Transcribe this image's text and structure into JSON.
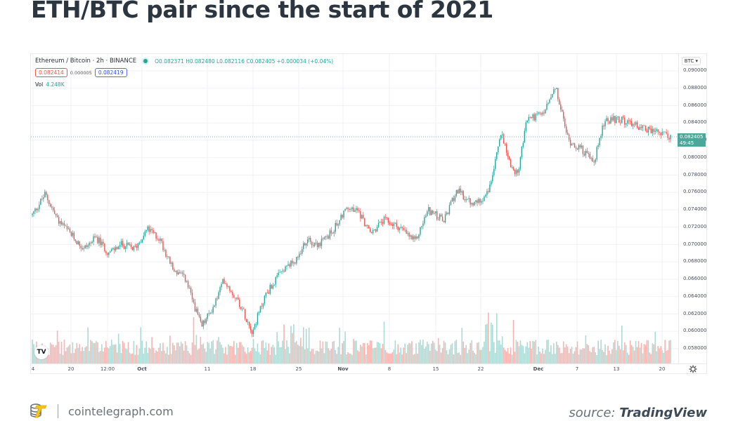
{
  "page": {
    "title": "ETH/BTC pair since the start of 2021"
  },
  "chart_header": {
    "symbol": "Ethereum / Bitcoin · 2h · BINANCE",
    "ohlc": "O0.082371 H0.082480 L0.082116 C0.082405 +0.000034 (+0.04%)",
    "bid": "0.082414",
    "spread": "0.000005",
    "ask": "0.082419",
    "vol_label": "Vol",
    "vol_value": "4.248K",
    "currency": "BTC ▾"
  },
  "last_price": {
    "value": "0.082405",
    "countdown": "49:45"
  },
  "colors": {
    "up": "#26a69a",
    "down": "#ef5350",
    "vol_up": "#9fd3cc",
    "vol_down": "#f5a8a3",
    "grid": "#f0f2f5",
    "last_price_bg": "#4ca79b"
  },
  "footer": {
    "site": "cointelegraph.com",
    "source_prefix": "source:",
    "source_brand": "TradingView"
  },
  "chart_data": {
    "type": "candlestick",
    "title": "ETH/BTC pair since the start of 2021",
    "symbol": "Ethereum / Bitcoin",
    "interval": "2h",
    "exchange": "BINANCE",
    "xlabel": "",
    "ylabel": "BTC",
    "ylim": [
      0.0565,
      0.091
    ],
    "y_ticks": [
      "0.090000",
      "0.088000",
      "0.086000",
      "0.084000",
      "0.082000",
      "0.080000",
      "0.078000",
      "0.076000",
      "0.074000",
      "0.072000",
      "0.070000",
      "0.068000",
      "0.066000",
      "0.064000",
      "0.062000",
      "0.060000",
      "0.058000"
    ],
    "x_ticks": [
      "4",
      "20",
      "12:00",
      "Oct",
      "11",
      "18",
      "25",
      "Nov",
      "8",
      "15",
      "22",
      "Dec",
      "7",
      "13",
      "20"
    ],
    "grid": true,
    "legend_position": "top-left",
    "approx_close_series": {
      "x_labels": [
        "4",
        "20",
        "Oct",
        "11",
        "18",
        "25",
        "Nov",
        "8",
        "15",
        "22",
        "Dec",
        "7",
        "13",
        "20"
      ],
      "points": [
        {
          "x": 0.0,
          "y": 0.0734
        },
        {
          "x": 0.02,
          "y": 0.0758
        },
        {
          "x": 0.04,
          "y": 0.0728
        },
        {
          "x": 0.06,
          "y": 0.0712
        },
        {
          "x": 0.08,
          "y": 0.0695
        },
        {
          "x": 0.1,
          "y": 0.0708
        },
        {
          "x": 0.12,
          "y": 0.069
        },
        {
          "x": 0.14,
          "y": 0.07
        },
        {
          "x": 0.16,
          "y": 0.0695
        },
        {
          "x": 0.18,
          "y": 0.0718
        },
        {
          "x": 0.2,
          "y": 0.0706
        },
        {
          "x": 0.22,
          "y": 0.0672
        },
        {
          "x": 0.24,
          "y": 0.066
        },
        {
          "x": 0.265,
          "y": 0.0605
        },
        {
          "x": 0.285,
          "y": 0.063
        },
        {
          "x": 0.3,
          "y": 0.066
        },
        {
          "x": 0.325,
          "y": 0.0632
        },
        {
          "x": 0.345,
          "y": 0.06
        },
        {
          "x": 0.365,
          "y": 0.0642
        },
        {
          "x": 0.39,
          "y": 0.0668
        },
        {
          "x": 0.41,
          "y": 0.068
        },
        {
          "x": 0.43,
          "y": 0.0705
        },
        {
          "x": 0.45,
          "y": 0.07
        },
        {
          "x": 0.47,
          "y": 0.0715
        },
        {
          "x": 0.49,
          "y": 0.074
        },
        {
          "x": 0.51,
          "y": 0.074
        },
        {
          "x": 0.53,
          "y": 0.0712
        },
        {
          "x": 0.55,
          "y": 0.0728
        },
        {
          "x": 0.575,
          "y": 0.072
        },
        {
          "x": 0.6,
          "y": 0.0703
        },
        {
          "x": 0.62,
          "y": 0.074
        },
        {
          "x": 0.645,
          "y": 0.0727
        },
        {
          "x": 0.665,
          "y": 0.0763
        },
        {
          "x": 0.69,
          "y": 0.0745
        },
        {
          "x": 0.715,
          "y": 0.076
        },
        {
          "x": 0.735,
          "y": 0.083
        },
        {
          "x": 0.75,
          "y": 0.079
        },
        {
          "x": 0.76,
          "y": 0.078
        },
        {
          "x": 0.775,
          "y": 0.0845
        },
        {
          "x": 0.8,
          "y": 0.085
        },
        {
          "x": 0.82,
          "y": 0.088
        },
        {
          "x": 0.84,
          "y": 0.082
        },
        {
          "x": 0.86,
          "y": 0.081
        },
        {
          "x": 0.88,
          "y": 0.0795
        },
        {
          "x": 0.895,
          "y": 0.084
        },
        {
          "x": 0.915,
          "y": 0.0845
        },
        {
          "x": 0.935,
          "y": 0.084
        },
        {
          "x": 1.0,
          "y": 0.082405
        }
      ]
    },
    "last_close": 0.082405,
    "period_high_approx": 0.0882,
    "period_low_approx": 0.0596,
    "volume_pane": true
  }
}
